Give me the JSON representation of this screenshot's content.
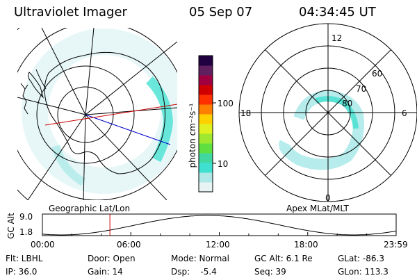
{
  "header": {
    "title": "Ultraviolet Imager",
    "date": "05 Sep 07",
    "time": "04:34:45 UT"
  },
  "colors": {
    "aurora": "#40e0d0",
    "orbit_line": "#0000cc",
    "time_marker": "#cc0000"
  },
  "colorbar": {
    "unit_label": "photon cm⁻²s⁻¹",
    "tick_labels": [
      "100",
      "10"
    ],
    "log_scale": true,
    "colors_bottom_to_top": [
      "#e8f4f4",
      "#b0e8e8",
      "#40e0d0",
      "#40d8a0",
      "#60e040",
      "#a0e830",
      "#e0f020",
      "#ffd000",
      "#ff8000",
      "#ff3000",
      "#d00000",
      "#a00040",
      "#602060",
      "#200040"
    ]
  },
  "geo_panel": {
    "label": "Geographic Lat/Lon"
  },
  "mlt_panel": {
    "label": "Apex MLat/MLT",
    "mlt_labels": {
      "top": "12",
      "left": "18",
      "right": "6",
      "bottom": "0"
    },
    "lat_labels": [
      "60",
      "70",
      "80"
    ]
  },
  "altitude_plot": {
    "axis_label": "GC Alt",
    "y_ticks": [
      "9.0",
      "1.8"
    ],
    "x_ticks": [
      "00:00",
      "06:00",
      "12:00",
      "18:00",
      "23:59"
    ],
    "current_time_hours": 4.58
  },
  "info": {
    "filter": "Flt: LBHL",
    "door": "Door: Open",
    "mode": "Mode: Normal",
    "gc_alt": "GC Alt: 6.1 Re",
    "glat": "GLat: -86.3",
    "ip": "IP: 36.0",
    "gain": "Gain: 14",
    "dsp": "Dsp:    -5.4",
    "seq": "Seq: 39",
    "glon": "GLon: 113.3"
  }
}
